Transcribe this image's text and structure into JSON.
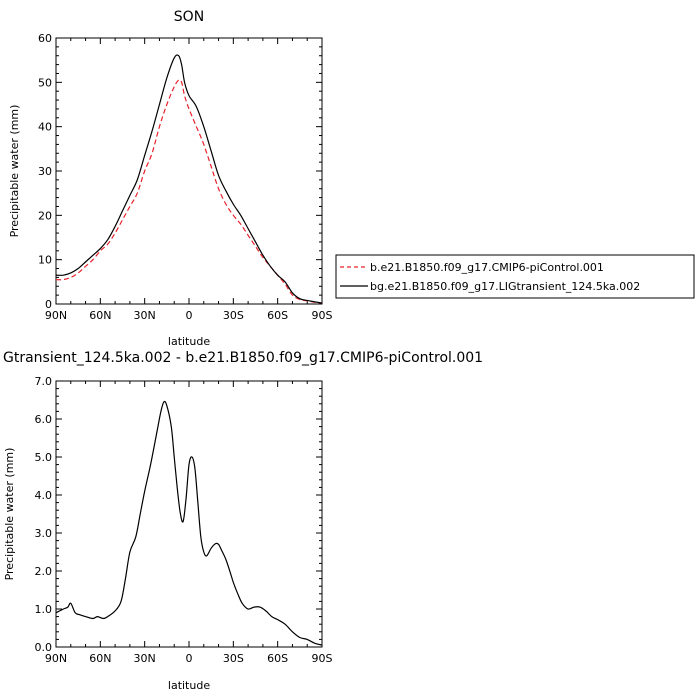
{
  "chart_data": [
    {
      "type": "line",
      "title": "SON",
      "xlabel": "latitude",
      "ylabel": "Precipitable water (mm)",
      "x_ticks": [
        {
          "value": 90,
          "label": "90N"
        },
        {
          "value": 60,
          "label": "60N"
        },
        {
          "value": 30,
          "label": "30N"
        },
        {
          "value": 0,
          "label": "0"
        },
        {
          "value": -30,
          "label": "30S"
        },
        {
          "value": -60,
          "label": "60S"
        },
        {
          "value": -90,
          "label": "90S"
        }
      ],
      "xlim": [
        90,
        -90
      ],
      "ylim": [
        0,
        60
      ],
      "y_ticks": [
        {
          "value": 0,
          "label": "0"
        },
        {
          "value": 10,
          "label": "10"
        },
        {
          "value": 20,
          "label": "20"
        },
        {
          "value": 30,
          "label": "30"
        },
        {
          "value": 40,
          "label": "40"
        },
        {
          "value": 50,
          "label": "50"
        },
        {
          "value": 60,
          "label": "60"
        }
      ],
      "legend_position": "right",
      "series": [
        {
          "name": "b.e21.B1850.f09_g17.CMIP6-piControl.001",
          "color": "#e8202a",
          "dash": "dashed",
          "x": [
            90,
            85,
            80,
            75,
            70,
            65,
            60,
            55,
            50,
            45,
            40,
            35,
            30,
            25,
            20,
            15,
            10,
            7,
            5,
            3,
            0,
            -5,
            -10,
            -15,
            -20,
            -25,
            -30,
            -35,
            -40,
            -45,
            -50,
            -55,
            -60,
            -65,
            -70,
            -75,
            -80,
            -85,
            -90
          ],
          "y": [
            5.5,
            5.5,
            6,
            7,
            8.5,
            10,
            12,
            13.5,
            16,
            19,
            22,
            25,
            30,
            34,
            40,
            45,
            49,
            50.5,
            50,
            47,
            44,
            40,
            36,
            31,
            26,
            22.5,
            20,
            18,
            15.5,
            13,
            10.5,
            8.5,
            6.5,
            4.5,
            2,
            1,
            0.7,
            0.4,
            0.2
          ]
        },
        {
          "name": "bg.e21.B1850.f09_g17.LIGtransient_124.5ka.002",
          "color": "#000000",
          "dash": "solid",
          "x": [
            90,
            85,
            80,
            75,
            70,
            65,
            60,
            55,
            50,
            45,
            40,
            35,
            30,
            25,
            20,
            15,
            10,
            7,
            5,
            3,
            0,
            -5,
            -10,
            -15,
            -20,
            -25,
            -30,
            -35,
            -40,
            -45,
            -50,
            -55,
            -60,
            -65,
            -70,
            -75,
            -80,
            -85,
            -90
          ],
          "y": [
            6.5,
            6.5,
            7,
            8,
            9.5,
            11,
            12.5,
            14.5,
            17.5,
            21,
            24.5,
            28,
            33.5,
            39,
            45,
            51,
            55.5,
            56,
            54,
            50,
            47,
            44.5,
            40,
            34.5,
            29,
            25.5,
            22.5,
            20,
            17,
            14,
            11,
            8.5,
            6.5,
            5,
            2.5,
            1.2,
            0.8,
            0.5,
            0.2
          ]
        }
      ]
    },
    {
      "type": "line",
      "title": "Gtransient_124.5ka.002 - b.e21.B1850.f09_g17.CMIP6-piControl.001",
      "xlabel": "latitude",
      "ylabel": "Precipitable water (mm)",
      "x_ticks": [
        {
          "value": 90,
          "label": "90N"
        },
        {
          "value": 60,
          "label": "60N"
        },
        {
          "value": 30,
          "label": "30N"
        },
        {
          "value": 0,
          "label": "0"
        },
        {
          "value": -30,
          "label": "30S"
        },
        {
          "value": -60,
          "label": "60S"
        },
        {
          "value": -90,
          "label": "90S"
        }
      ],
      "xlim": [
        90,
        -90
      ],
      "ylim": [
        0,
        7
      ],
      "y_ticks": [
        {
          "value": 0,
          "label": "0.0"
        },
        {
          "value": 1,
          "label": "1.0"
        },
        {
          "value": 2,
          "label": "2.0"
        },
        {
          "value": 3,
          "label": "3.0"
        },
        {
          "value": 4,
          "label": "4.0"
        },
        {
          "value": 5,
          "label": "5.0"
        },
        {
          "value": 6,
          "label": "6.0"
        },
        {
          "value": 7,
          "label": "7.0"
        }
      ],
      "series": [
        {
          "color": "#000000",
          "dash": "solid",
          "x": [
            90,
            85,
            82,
            80,
            77,
            74,
            70,
            65,
            62,
            58,
            55,
            50,
            46,
            43,
            40,
            36,
            33,
            30,
            26,
            22,
            19,
            17,
            15,
            12,
            10,
            8,
            6,
            4,
            2,
            0,
            -2,
            -4,
            -6,
            -8,
            -10,
            -12,
            -15,
            -18,
            -20,
            -22,
            -25,
            -28,
            -30,
            -33,
            -36,
            -40,
            -44,
            -48,
            -52,
            -56,
            -60,
            -65,
            -70,
            -75,
            -80,
            -85,
            -90
          ],
          "y": [
            0.9,
            1.0,
            1.05,
            1.15,
            0.9,
            0.85,
            0.8,
            0.75,
            0.8,
            0.75,
            0.8,
            0.95,
            1.2,
            1.8,
            2.5,
            2.9,
            3.5,
            4.1,
            4.8,
            5.6,
            6.2,
            6.45,
            6.35,
            5.8,
            5.0,
            4.2,
            3.55,
            3.3,
            3.9,
            4.8,
            5.0,
            4.7,
            3.8,
            2.9,
            2.5,
            2.4,
            2.6,
            2.72,
            2.7,
            2.55,
            2.3,
            1.95,
            1.7,
            1.4,
            1.15,
            1.0,
            1.05,
            1.05,
            0.95,
            0.8,
            0.72,
            0.6,
            0.4,
            0.25,
            0.2,
            0.1,
            0.05
          ]
        }
      ]
    }
  ]
}
